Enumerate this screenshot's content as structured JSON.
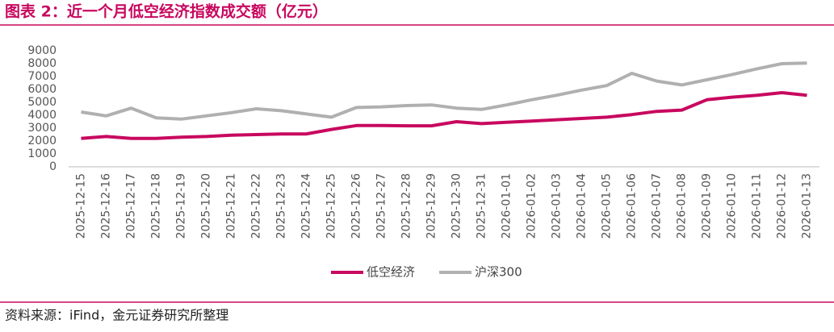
{
  "chart_data": {
    "type": "line",
    "title": "图表 2：近一个月低空经济指数成交额（亿元）",
    "source": "资料来源：iFind，金元证券研究所整理",
    "categories": [
      "2025-12-15",
      "2025-12-16",
      "2025-12-17",
      "2025-12-18",
      "2025-12-19",
      "2025-12-20",
      "2025-12-21",
      "2025-12-22",
      "2025-12-23",
      "2025-12-24",
      "2025-12-25",
      "2025-12-26",
      "2025-12-27",
      "2025-12-28",
      "2025-12-29",
      "2025-12-30",
      "2025-12-31",
      "2026-01-01",
      "2026-01-02",
      "2026-01-03",
      "2026-01-04",
      "2026-01-05",
      "2026-01-06",
      "2026-01-07",
      "2026-01-08",
      "2026-01-09",
      "2026-01-10",
      "2026-01-11",
      "2026-01-12",
      "2026-01-13"
    ],
    "series": [
      {
        "name": "低空经济",
        "color": "#c8085f",
        "values": [
          2200,
          2350,
          2200,
          2200,
          2300,
          2350,
          2450,
          2500,
          2550,
          2550,
          2900,
          3200,
          3200,
          3180,
          3180,
          3500,
          3350,
          3450,
          3550,
          3650,
          3750,
          3850,
          4050,
          4300,
          4400,
          5200,
          5400,
          5550,
          5750,
          5550
        ]
      },
      {
        "name": "沪深300",
        "color": "#b0b0b0",
        "values": [
          4250,
          3950,
          4550,
          3800,
          3700,
          3950,
          4200,
          4500,
          4350,
          4100,
          3850,
          4600,
          4650,
          4750,
          4800,
          4550,
          4450,
          4800,
          5200,
          5550,
          5950,
          6300,
          7250,
          6650,
          6350,
          6750,
          7150,
          7600,
          8000,
          8050
        ]
      }
    ],
    "ylim": [
      0,
      9000
    ],
    "yticks": [
      0,
      1000,
      2000,
      3000,
      4000,
      5000,
      6000,
      7000,
      8000,
      9000
    ],
    "grid": false,
    "legend": "bottom"
  }
}
